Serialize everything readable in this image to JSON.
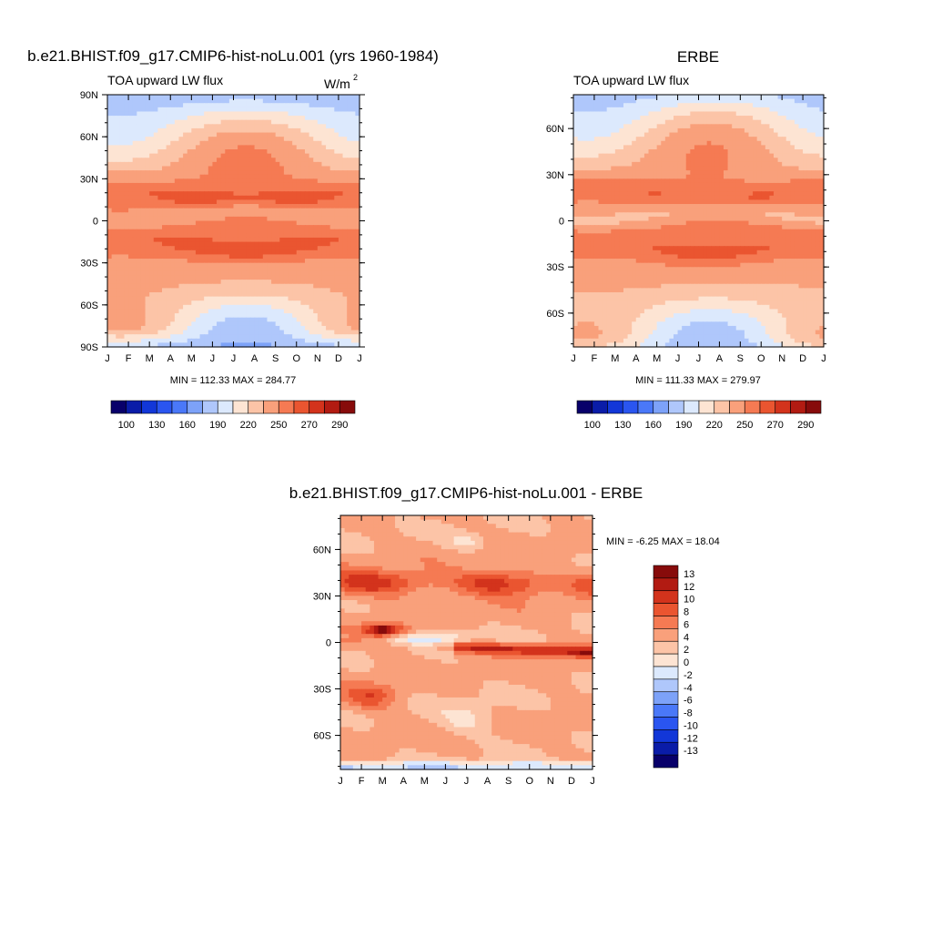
{
  "figure": {
    "months": [
      "J",
      "F",
      "M",
      "A",
      "M",
      "J",
      "J",
      "A",
      "S",
      "O",
      "N",
      "D",
      "J"
    ]
  },
  "chart_data": [
    {
      "type": "heatmap",
      "title": "b.e21.BHIST.f09_g17.CMIP6-hist-noLu.001 (yrs 1960-1984)",
      "left_label": "TOA upward LW flux",
      "units_base": "W/m",
      "units_exp": "2",
      "xlabel": "",
      "ylabel": "",
      "x_ticks": [
        "J",
        "F",
        "M",
        "A",
        "M",
        "J",
        "J",
        "A",
        "S",
        "O",
        "N",
        "D",
        "J"
      ],
      "y_ticks": [
        {
          "lat": 90,
          "label": "90N"
        },
        {
          "lat": 60,
          "label": "60N"
        },
        {
          "lat": 30,
          "label": "30N"
        },
        {
          "lat": 0,
          "label": "0"
        },
        {
          "lat": -30,
          "label": "30S"
        },
        {
          "lat": -60,
          "label": "60S"
        },
        {
          "lat": -90,
          "label": "90S"
        }
      ],
      "ylim": [
        -90,
        90
      ],
      "stats": "MIN = 112.33 MAX = 284.77",
      "min": 112.33,
      "max": 284.77,
      "colorbar": {
        "colors": [
          "#08006a",
          "#0a1ca8",
          "#1237d8",
          "#2a55f0",
          "#4a78f8",
          "#7da2f8",
          "#afc7fb",
          "#dce9fd",
          "#fde4d3",
          "#fcc4a7",
          "#f9a07b",
          "#f57a53",
          "#ea5530",
          "#d3331c",
          "#b21b12",
          "#870b0b"
        ],
        "labels": [
          {
            "after": 1,
            "label": "100"
          },
          {
            "after": 3,
            "label": "130"
          },
          {
            "after": 5,
            "label": "160"
          },
          {
            "after": 7,
            "label": "190"
          },
          {
            "after": 9,
            "label": "220"
          },
          {
            "after": 11,
            "label": "250"
          },
          {
            "after": 13,
            "label": "270"
          },
          {
            "after": 15,
            "label": "290"
          }
        ]
      }
    },
    {
      "type": "heatmap",
      "title": "ERBE",
      "left_label": "TOA upward LW flux",
      "xlabel": "",
      "ylabel": "",
      "x_ticks": [
        "J",
        "F",
        "M",
        "A",
        "M",
        "J",
        "J",
        "A",
        "S",
        "O",
        "N",
        "D",
        "J"
      ],
      "y_ticks": [
        {
          "lat": 60,
          "label": "60N"
        },
        {
          "lat": 30,
          "label": "30N"
        },
        {
          "lat": 0,
          "label": "0"
        },
        {
          "lat": -30,
          "label": "30S"
        },
        {
          "lat": -60,
          "label": "60S"
        }
      ],
      "ylim": [
        -82,
        82
      ],
      "stats": "MIN = 111.33 MAX = 279.97",
      "min": 111.33,
      "max": 279.97,
      "colorbar": {
        "colors": [
          "#08006a",
          "#0a1ca8",
          "#1237d8",
          "#2a55f0",
          "#4a78f8",
          "#7da2f8",
          "#afc7fb",
          "#dce9fd",
          "#fde4d3",
          "#fcc4a7",
          "#f9a07b",
          "#f57a53",
          "#ea5530",
          "#d3331c",
          "#b21b12",
          "#870b0b"
        ],
        "labels": [
          {
            "after": 1,
            "label": "100"
          },
          {
            "after": 3,
            "label": "130"
          },
          {
            "after": 5,
            "label": "160"
          },
          {
            "after": 7,
            "label": "190"
          },
          {
            "after": 9,
            "label": "220"
          },
          {
            "after": 11,
            "label": "250"
          },
          {
            "after": 13,
            "label": "270"
          },
          {
            "after": 15,
            "label": "290"
          }
        ]
      }
    },
    {
      "type": "heatmap",
      "title": "b.e21.BHIST.f09_g17.CMIP6-hist-noLu.001 - ERBE",
      "xlabel": "",
      "ylabel": "",
      "x_ticks": [
        "J",
        "F",
        "M",
        "A",
        "M",
        "J",
        "J",
        "A",
        "S",
        "O",
        "N",
        "D",
        "J"
      ],
      "y_ticks": [
        {
          "lat": 60,
          "label": "60N"
        },
        {
          "lat": 30,
          "label": "30N"
        },
        {
          "lat": 0,
          "label": "0"
        },
        {
          "lat": -30,
          "label": "30S"
        },
        {
          "lat": -60,
          "label": "60S"
        }
      ],
      "ylim": [
        -82,
        82
      ],
      "stats": "MIN =  -6.25 MAX =  18.04",
      "min": -6.25,
      "max": 18.04,
      "colorbar": {
        "orientation": "vertical",
        "colors_top_to_bottom": [
          "#870b0b",
          "#b21b12",
          "#d3331c",
          "#ea5530",
          "#f57a53",
          "#f9a07b",
          "#fcc4a7",
          "#fde4d3",
          "#dce9fd",
          "#afc7fb",
          "#7da2f8",
          "#4a78f8",
          "#2a55f0",
          "#1237d8",
          "#0a1ca8",
          "#08006a"
        ],
        "labels": [
          "13",
          "12",
          "10",
          "8",
          "6",
          "4",
          "2",
          "0",
          "-2",
          "-4",
          "-6",
          "-8",
          "-10",
          "-12",
          "-13"
        ]
      }
    }
  ]
}
